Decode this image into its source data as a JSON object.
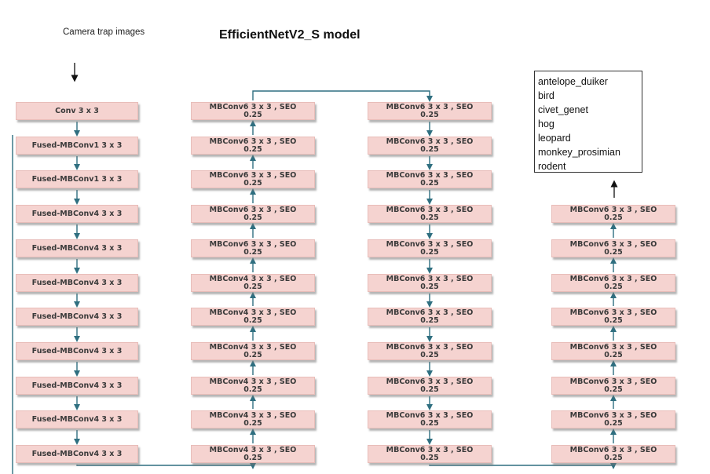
{
  "title": "EfficientNetV2_S model",
  "input_label": "Camera trap images",
  "columns": [
    {
      "blocks": [
        {
          "text": "Conv 3 x 3",
          "text2": ""
        },
        {
          "text": "Fused-MBConv1  3 x 3",
          "text2": ""
        },
        {
          "text": "Fused-MBConv1 3 x 3",
          "text2": ""
        },
        {
          "text": "Fused-MBConv4 3 x 3",
          "text2": ""
        },
        {
          "text": "Fused-MBConv4 3 x 3",
          "text2": ""
        },
        {
          "text": "Fused-MBConv4 3 x 3",
          "text2": ""
        },
        {
          "text": "Fused-MBConv4 3 x 3",
          "text2": ""
        },
        {
          "text": "Fused-MBConv4 3 x 3",
          "text2": ""
        },
        {
          "text": "Fused-MBConv4 3 x 3",
          "text2": ""
        },
        {
          "text": "Fused-MBConv4 3 x 3",
          "text2": ""
        },
        {
          "text": "Fused-MBConv4 3 x 3",
          "text2": ""
        }
      ]
    },
    {
      "blocks": [
        {
          "text": "MBConv6 3 x 3 , SEO",
          "text2": "0.25"
        },
        {
          "text": "MBConv6 3 x 3 , SEO",
          "text2": "0.25"
        },
        {
          "text": "MBConv6 3 x 3 , SEO",
          "text2": "0.25"
        },
        {
          "text": "MBConv6 3 x 3 , SEO",
          "text2": "0.25"
        },
        {
          "text": "MBConv6 3 x 3 , SEO",
          "text2": "0.25"
        },
        {
          "text": "MBConv4 3 x 3 , SEO",
          "text2": "0.25"
        },
        {
          "text": "MBConv4 3 x 3 , SEO",
          "text2": "0.25"
        },
        {
          "text": "MBConv4 3 x 3 , SEO",
          "text2": "0.25"
        },
        {
          "text": "MBConv4 3 x 3 , SEO",
          "text2": "0.25"
        },
        {
          "text": "MBConv4 3 x 3 , SEO",
          "text2": "0.25"
        },
        {
          "text": "MBConv4 3 x 3 , SEO",
          "text2": "0.25"
        }
      ]
    },
    {
      "blocks": [
        {
          "text": "MBConv6 3 x 3 , SEO",
          "text2": "0.25"
        },
        {
          "text": "MBConv6 3 x 3 , SEO",
          "text2": "0.25"
        },
        {
          "text": "MBConv6 3 x 3 , SEO",
          "text2": "0.25"
        },
        {
          "text": "MBConv6 3 x 3 , SEO",
          "text2": "0.25"
        },
        {
          "text": "MBConv6 3 x 3 , SEO",
          "text2": "0.25"
        },
        {
          "text": "MBConv6 3 x 3 , SEO",
          "text2": "0.25"
        },
        {
          "text": "MBConv6 3 x 3 , SEO",
          "text2": "0.25"
        },
        {
          "text": "MBConv6 3 x 3 , SEO",
          "text2": "0.25"
        },
        {
          "text": "MBConv6 3 x 3 , SEO",
          "text2": "0.25"
        },
        {
          "text": "MBConv6 3 x 3 , SEO",
          "text2": "0.25"
        },
        {
          "text": "MBConv6 3 x 3 , SEO",
          "text2": "0.25"
        }
      ]
    },
    {
      "blocks": [
        {
          "text": "MBConv6 3 x 3 , SEO",
          "text2": "0.25"
        },
        {
          "text": "MBConv6 3 x 3 , SEO",
          "text2": "0.25"
        },
        {
          "text": "MBConv6 3 x 3 , SEO",
          "text2": "0.25"
        },
        {
          "text": "MBConv6 3 x 3 , SEO",
          "text2": "0.25"
        },
        {
          "text": "MBConv6 3 x 3 , SEO",
          "text2": "0.25"
        },
        {
          "text": "MBConv6 3 x 3 , SEO",
          "text2": "0.25"
        },
        {
          "text": "MBConv6 3 x 3 , SEO",
          "text2": "0.25"
        },
        {
          "text": "MBConv6 3 x 3 , SEO",
          "text2": "0.25"
        }
      ]
    }
  ],
  "classes": [
    "antelope_duiker",
    "bird",
    "civet_genet",
    "hog",
    "leopard",
    "monkey_prosimian",
    "rodent"
  ],
  "colors": {
    "block_fill": "#f5d3d0",
    "connector": "#2f6f80",
    "arrow": "#111111"
  }
}
